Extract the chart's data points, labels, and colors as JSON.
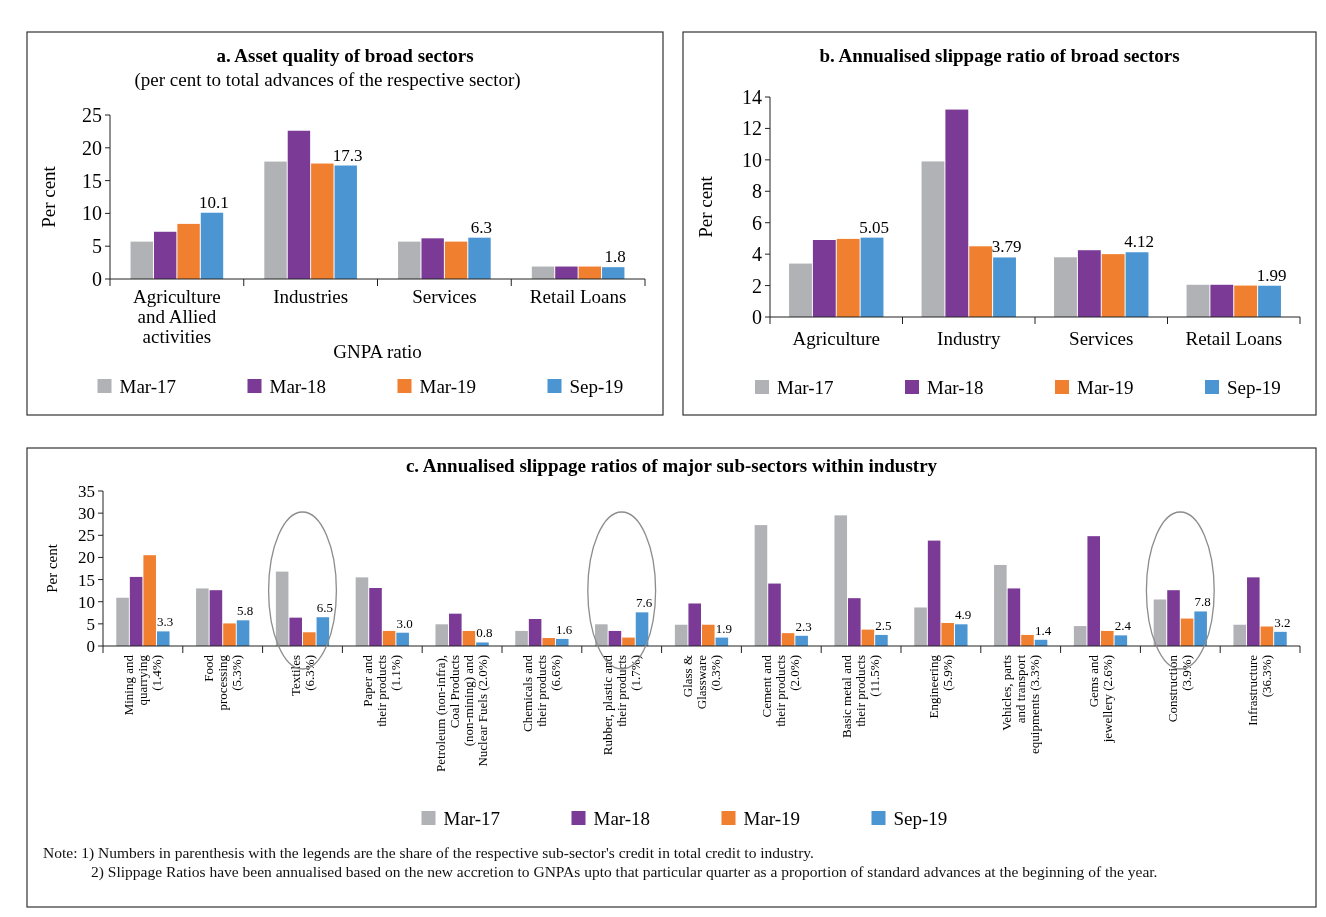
{
  "chart_data": [
    {
      "type": "bar",
      "title": "a. Asset quality of broad sectors",
      "subtitle": "(per cent to total advances of the respective sector)",
      "xlabel": "GNPA ratio",
      "ylabel": "Per cent",
      "categories": [
        "Agriculture\nand Allied\nactivities",
        "Industries",
        "Services",
        "Retail Loans"
      ],
      "ylim": [
        0,
        25
      ],
      "yticks": [
        0,
        5,
        10,
        15,
        20,
        25
      ],
      "legend": "bottom",
      "series": [
        {
          "name": "Mar-17",
          "color": "#b1b2b6",
          "values": [
            5.7,
            17.9,
            5.7,
            1.9
          ]
        },
        {
          "name": "Mar-18",
          "color": "#7b3a96",
          "values": [
            7.2,
            22.6,
            6.2,
            1.9
          ]
        },
        {
          "name": "Mar-19",
          "color": "#f07f2f",
          "values": [
            8.4,
            17.6,
            5.7,
            1.9
          ]
        },
        {
          "name": "Sep-19",
          "color": "#4b96d2",
          "values": [
            10.1,
            17.3,
            6.3,
            1.8
          ],
          "value_labels": [
            "10.1",
            "17.3",
            "6.3",
            "1.8"
          ]
        }
      ]
    },
    {
      "type": "bar",
      "title": "b. Annualised slippage ratio of broad sectors",
      "ylabel": "Per cent",
      "categories": [
        "Agriculture",
        "Industry",
        "Services",
        "Retail Loans"
      ],
      "ylim": [
        0,
        14
      ],
      "yticks": [
        0,
        2,
        4,
        6,
        8,
        10,
        12,
        14
      ],
      "legend": "bottom",
      "series": [
        {
          "name": "Mar-17",
          "color": "#b1b2b6",
          "values": [
            3.4,
            9.9,
            3.8,
            2.05
          ]
        },
        {
          "name": "Mar-18",
          "color": "#7b3a96",
          "values": [
            4.9,
            13.2,
            4.25,
            2.05
          ]
        },
        {
          "name": "Mar-19",
          "color": "#f07f2f",
          "values": [
            4.97,
            4.5,
            4.0,
            2.0
          ]
        },
        {
          "name": "Sep-19",
          "color": "#4b96d2",
          "values": [
            5.05,
            3.79,
            4.12,
            1.99
          ],
          "value_labels": [
            "5.05",
            "3.79",
            "4.12",
            "1.99"
          ]
        }
      ]
    },
    {
      "type": "bar",
      "title": "c. Annualised slippage ratios of major sub-sectors within industry",
      "ylabel": "Per cent",
      "categories": [
        "Mining and\nquarrying\n(1.4%)",
        "Food\nprocessing\n(5.3%)",
        "Textiles\n(6.3%)",
        "Paper and\ntheir products\n(1.1%)",
        "Petroleum (non-infra),\nCoal Products\n(non-mining) and\nNuclear Fuels (2.0%)",
        "Chemicals and\ntheir products\n(6.6%)",
        "Rubber, plastic and\ntheir products\n(1.7%)",
        "Glass &\nGlassware\n(0.3%)",
        "Cement  and\ntheir products\n(2.0%)",
        "Basic metal and\ntheir products\n(11.5%)",
        "Engineering\n(5.9%)",
        "Vehicles, parts\nand transport\nequipments (3.3%)",
        "Gems and\njewellery (2.6%)",
        "Construction\n(3.9%)",
        "Infrastructure\n(36.3%)"
      ],
      "ylim": [
        0,
        35
      ],
      "yticks": [
        0,
        5,
        10,
        15,
        20,
        25,
        30,
        35
      ],
      "legend": "bottom",
      "series": [
        {
          "name": "Mar-17",
          "color": "#b1b2b6",
          "values": [
            10.9,
            13.0,
            16.8,
            15.5,
            4.9,
            3.4,
            4.9,
            4.8,
            27.3,
            29.5,
            8.7,
            18.3,
            4.5,
            10.5,
            4.8
          ]
        },
        {
          "name": "Mar-18",
          "color": "#7b3a96",
          "values": [
            15.6,
            12.6,
            6.4,
            13.1,
            7.3,
            6.1,
            3.4,
            9.6,
            14.1,
            10.8,
            23.8,
            13.0,
            24.8,
            12.6,
            15.5
          ]
        },
        {
          "name": "Mar-19",
          "color": "#f07f2f",
          "values": [
            20.5,
            5.1,
            3.1,
            3.4,
            3.4,
            1.8,
            1.9,
            4.8,
            2.9,
            3.7,
            5.2,
            2.5,
            3.4,
            6.2,
            4.4
          ]
        },
        {
          "name": "Sep-19",
          "color": "#4b96d2",
          "values": [
            3.3,
            5.8,
            6.5,
            3.0,
            0.8,
            1.6,
            7.6,
            1.9,
            2.3,
            2.5,
            4.9,
            1.4,
            2.4,
            7.8,
            3.2
          ],
          "value_labels": [
            "3.3",
            "5.8",
            "6.5",
            "3.0",
            "0.8",
            "1.6",
            "7.6",
            "1.9",
            "2.3",
            "2.5",
            "4.9",
            "1.4",
            "2.4",
            "7.8",
            "3.2"
          ]
        }
      ],
      "annotations": [
        "Note: 1) Numbers in  parenthesis with the legends are the share of the respective sub-sector's credit in total credit to industry.",
        "2) Slippage Ratios have been annualised based on the new accretion to GNPAs upto that particular quarter as a proportion of standard advances at the beginning of the year."
      ]
    }
  ]
}
